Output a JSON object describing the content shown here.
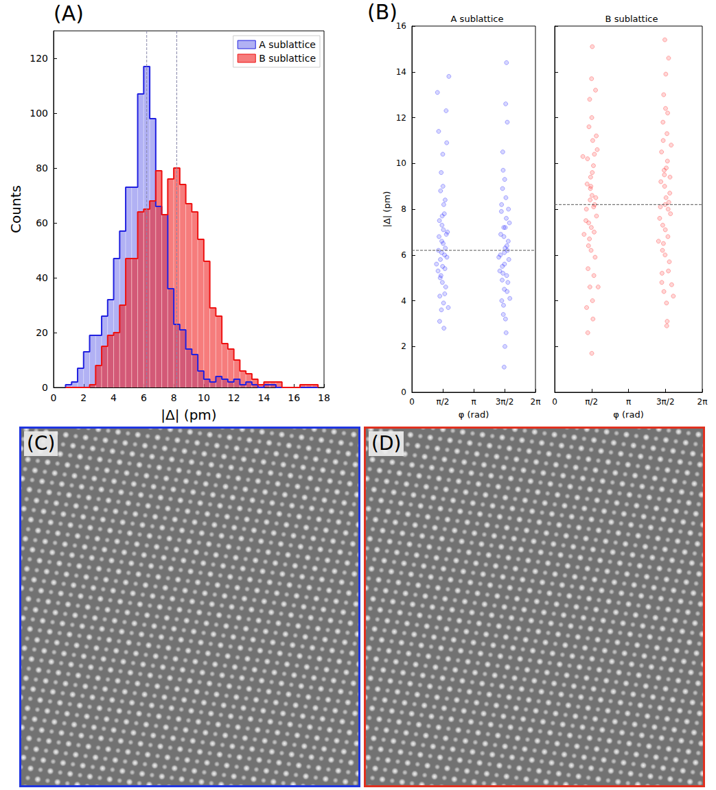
{
  "chart_data": [
    {
      "type": "histogram",
      "panel_label": "(A)",
      "x_label": "|Δ| (pm)",
      "y_label": "Counts",
      "bins": [
        0.8,
        1.2,
        1.6,
        2.0,
        2.4,
        2.8,
        3.2,
        3.6,
        4.0,
        4.4,
        4.8,
        5.2,
        5.6,
        6.0,
        6.4,
        6.8,
        7.2,
        7.6,
        8.0,
        8.4,
        8.8,
        9.2,
        9.6,
        10.0,
        10.4,
        10.8,
        11.2,
        11.6,
        12.0,
        12.4,
        12.8,
        13.2,
        13.6,
        14.0,
        14.4,
        14.8,
        15.2,
        15.6,
        16.0,
        16.4,
        16.8,
        17.2,
        17.6
      ],
      "series": [
        {
          "name": "A sublattice",
          "color": "#2020e0",
          "mean": 6.2,
          "counts": [
            1,
            2,
            7,
            13,
            19,
            19,
            26,
            32,
            47,
            57,
            73,
            73,
            107,
            117,
            98,
            66,
            63,
            36,
            23,
            21,
            14,
            12,
            6,
            3,
            2,
            4,
            3,
            2,
            3,
            1,
            2,
            1,
            0,
            1,
            1,
            0,
            0,
            0,
            0,
            0,
            0,
            0
          ]
        },
        {
          "name": "B sublattice",
          "color": "#ee1111",
          "mean": 8.2,
          "counts": [
            0,
            0,
            0,
            0,
            1,
            8,
            15,
            19,
            20,
            30,
            47,
            47,
            64,
            65,
            68,
            79,
            63,
            76,
            80,
            74,
            67,
            64,
            54,
            46,
            29,
            26,
            16,
            14,
            10,
            6,
            5,
            3,
            1,
            2,
            2,
            2,
            0,
            0,
            0,
            1,
            1,
            1
          ]
        }
      ],
      "xlim": [
        0,
        18
      ],
      "xticks": [
        0,
        2,
        4,
        6,
        8,
        10,
        12,
        14,
        16,
        18
      ],
      "ylim": [
        0,
        130
      ],
      "yticks": [
        0,
        20,
        40,
        60,
        80,
        100,
        120
      ],
      "legend": "upper right",
      "grid": false
    },
    {
      "type": "scatter",
      "panel_label": "(B)",
      "title": "A sublattice",
      "x_label": "φ (rad)",
      "y_label": "|Δ| (pm)",
      "color": "#0000ff",
      "mean": 6.2,
      "points": [
        [
          1.35,
          6.2
        ],
        [
          1.45,
          5.8
        ],
        [
          1.52,
          6.6
        ],
        [
          1.6,
          7.1
        ],
        [
          1.68,
          5.4
        ],
        [
          1.75,
          6.9
        ],
        [
          1.4,
          7.5
        ],
        [
          1.55,
          4.8
        ],
        [
          1.62,
          8.2
        ],
        [
          1.48,
          5.1
        ],
        [
          1.7,
          6.3
        ],
        [
          1.58,
          9.0
        ],
        [
          1.42,
          4.2
        ],
        [
          1.65,
          7.8
        ],
        [
          1.5,
          3.6
        ],
        [
          1.78,
          5.9
        ],
        [
          1.38,
          6.8
        ],
        [
          1.56,
          5.5
        ],
        [
          1.72,
          4.6
        ],
        [
          1.46,
          8.8
        ],
        [
          1.61,
          3.9
        ],
        [
          1.53,
          7.3
        ],
        [
          1.66,
          6.0
        ],
        [
          1.44,
          5.0
        ],
        [
          1.59,
          6.5
        ],
        [
          1.81,
          7.0
        ],
        [
          1.33,
          5.3
        ],
        [
          1.63,
          2.8
        ],
        [
          1.49,
          9.6
        ],
        [
          1.57,
          10.4
        ],
        [
          1.36,
          11.4
        ],
        [
          1.74,
          12.3
        ],
        [
          1.3,
          13.1
        ],
        [
          1.69,
          8.4
        ],
        [
          1.41,
          3.1
        ],
        [
          1.54,
          7.7
        ],
        [
          1.67,
          4.3
        ],
        [
          1.51,
          6.1
        ],
        [
          1.88,
          13.8
        ],
        [
          1.77,
          10.9
        ],
        [
          1.25,
          5.6
        ],
        [
          1.85,
          3.7
        ],
        [
          4.5,
          6.0
        ],
        [
          4.6,
          5.5
        ],
        [
          4.68,
          6.8
        ],
        [
          4.75,
          7.2
        ],
        [
          4.82,
          5.1
        ],
        [
          4.9,
          6.6
        ],
        [
          4.55,
          7.9
        ],
        [
          4.7,
          4.5
        ],
        [
          4.78,
          8.5
        ],
        [
          4.63,
          5.2
        ],
        [
          4.86,
          6.2
        ],
        [
          4.72,
          9.3
        ],
        [
          4.57,
          4.0
        ],
        [
          4.8,
          7.6
        ],
        [
          4.65,
          3.4
        ],
        [
          4.93,
          5.8
        ],
        [
          4.52,
          6.9
        ],
        [
          4.71,
          5.6
        ],
        [
          4.88,
          4.8
        ],
        [
          4.61,
          8.9
        ],
        [
          4.76,
          3.2
        ],
        [
          4.67,
          7.2
        ],
        [
          4.83,
          6.4
        ],
        [
          4.59,
          4.9
        ],
        [
          4.74,
          6.3
        ],
        [
          4.96,
          7.4
        ],
        [
          4.47,
          5.3
        ],
        [
          4.79,
          2.6
        ],
        [
          4.64,
          9.7
        ],
        [
          4.73,
          2.0
        ],
        [
          4.69,
          1.1
        ],
        [
          4.85,
          11.8
        ],
        [
          4.77,
          12.6
        ],
        [
          4.81,
          14.4
        ],
        [
          4.56,
          8.2
        ],
        [
          4.66,
          3.8
        ],
        [
          4.84,
          4.4
        ],
        [
          4.7,
          6.1
        ],
        [
          4.42,
          5.9
        ],
        [
          4.98,
          4.1
        ],
        [
          4.62,
          10.5
        ],
        [
          4.91,
          8.0
        ]
      ],
      "xlim": [
        0,
        6.2832
      ],
      "xticks": [
        0,
        {
          "value": 1.5708,
          "label": "π/2"
        },
        {
          "value": 3.1416,
          "label": "π"
        },
        {
          "value": 4.7124,
          "label": "3π/2"
        },
        {
          "value": 6.2832,
          "label": "2π"
        }
      ],
      "ylim": [
        0,
        16
      ],
      "yticks": [
        0,
        2,
        4,
        6,
        8,
        10,
        12,
        14,
        16
      ]
    },
    {
      "type": "scatter",
      "title": "B sublattice",
      "x_label": "φ (rad)",
      "color": "#ff0000",
      "mean": 8.2,
      "points": [
        [
          1.35,
          8.0
        ],
        [
          1.45,
          7.4
        ],
        [
          1.52,
          8.9
        ],
        [
          1.6,
          9.6
        ],
        [
          1.68,
          7.0
        ],
        [
          1.75,
          8.5
        ],
        [
          1.4,
          10.2
        ],
        [
          1.55,
          6.2
        ],
        [
          1.62,
          11.0
        ],
        [
          1.48,
          6.7
        ],
        [
          1.7,
          8.2
        ],
        [
          1.58,
          12.0
        ],
        [
          1.42,
          5.4
        ],
        [
          1.65,
          9.9
        ],
        [
          1.5,
          4.6
        ],
        [
          1.78,
          7.7
        ],
        [
          1.38,
          9.1
        ],
        [
          1.56,
          7.2
        ],
        [
          1.72,
          5.9
        ],
        [
          1.46,
          11.6
        ],
        [
          1.61,
          4.0
        ],
        [
          1.53,
          9.4
        ],
        [
          1.66,
          8.1
        ],
        [
          1.44,
          6.4
        ],
        [
          1.59,
          8.6
        ],
        [
          1.81,
          10.6
        ],
        [
          1.33,
          7.5
        ],
        [
          1.63,
          3.2
        ],
        [
          1.49,
          12.8
        ],
        [
          1.57,
          13.7
        ],
        [
          1.36,
          3.7
        ],
        [
          1.74,
          13.2
        ],
        [
          1.6,
          15.1
        ],
        [
          1.69,
          10.4
        ],
        [
          1.41,
          2.6
        ],
        [
          1.54,
          9.0
        ],
        [
          1.67,
          5.1
        ],
        [
          1.51,
          8.4
        ],
        [
          1.58,
          1.7
        ],
        [
          1.77,
          11.2
        ],
        [
          1.25,
          6.9
        ],
        [
          1.85,
          4.6
        ],
        [
          1.2,
          10.3
        ],
        [
          4.5,
          8.1
        ],
        [
          4.6,
          7.3
        ],
        [
          4.68,
          9.0
        ],
        [
          4.75,
          9.8
        ],
        [
          4.82,
          6.8
        ],
        [
          4.9,
          8.7
        ],
        [
          4.55,
          10.5
        ],
        [
          4.7,
          6.0
        ],
        [
          4.78,
          11.3
        ],
        [
          4.63,
          6.5
        ],
        [
          4.86,
          8.3
        ],
        [
          4.72,
          12.4
        ],
        [
          4.57,
          5.2
        ],
        [
          4.8,
          10.1
        ],
        [
          4.65,
          4.4
        ],
        [
          4.93,
          7.8
        ],
        [
          4.52,
          9.2
        ],
        [
          4.71,
          7.1
        ],
        [
          4.88,
          5.7
        ],
        [
          4.61,
          11.8
        ],
        [
          4.76,
          3.9
        ],
        [
          4.67,
          9.5
        ],
        [
          4.83,
          8.0
        ],
        [
          4.59,
          6.2
        ],
        [
          4.74,
          8.5
        ],
        [
          4.96,
          10.8
        ],
        [
          4.47,
          7.6
        ],
        [
          4.79,
          3.1
        ],
        [
          4.64,
          13.0
        ],
        [
          4.73,
          13.9
        ],
        [
          4.69,
          15.4
        ],
        [
          4.85,
          14.6
        ],
        [
          4.77,
          2.9
        ],
        [
          4.81,
          12.2
        ],
        [
          4.56,
          4.8
        ],
        [
          4.66,
          9.7
        ],
        [
          4.84,
          5.3
        ],
        [
          4.7,
          8.2
        ],
        [
          4.42,
          6.6
        ],
        [
          4.98,
          4.7
        ],
        [
          4.62,
          11.0
        ],
        [
          4.91,
          9.4
        ],
        [
          5.05,
          4.2
        ]
      ],
      "xlim": [
        0,
        6.2832
      ],
      "xticks": [
        0,
        {
          "value": 1.5708,
          "label": "π/2"
        },
        {
          "value": 3.1416,
          "label": "π"
        },
        {
          "value": 4.7124,
          "label": "3π/2"
        },
        {
          "value": 6.2832,
          "label": "2π"
        }
      ],
      "ylim": [
        0,
        16
      ],
      "yticks": [
        0,
        2,
        4,
        6,
        8,
        10,
        12,
        14,
        16
      ],
      "tick_labels": "x"
    }
  ],
  "images": [
    {
      "label": "(C)",
      "frame_color": "#1f35e0"
    },
    {
      "label": "(D)",
      "frame_color": "#e0301f"
    }
  ]
}
